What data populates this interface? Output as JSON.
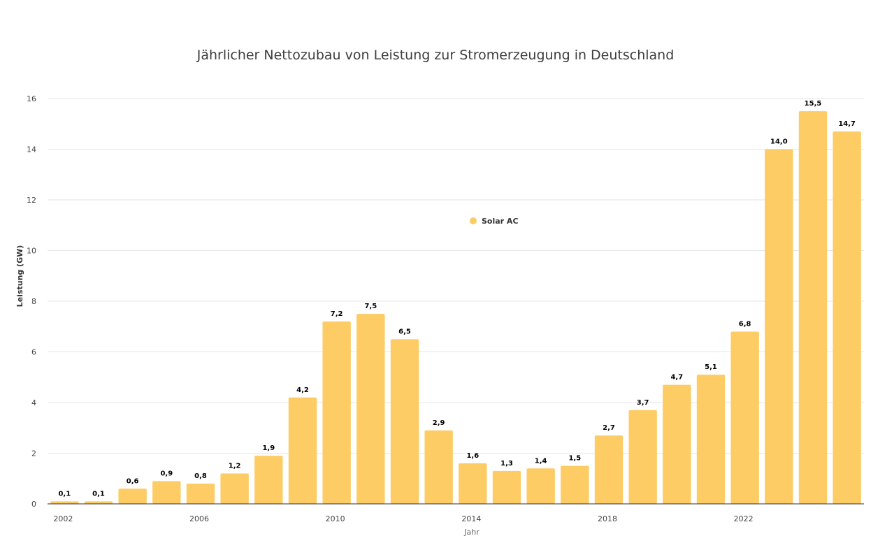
{
  "chart_data": {
    "type": "bar",
    "title": "Jährlicher Nettozubau von Leistung zur Stromerzeugung in Deutschland",
    "xlabel": "Jahr",
    "ylabel": "Leistung (GW)",
    "ylim": [
      0,
      16
    ],
    "yticks": [
      "0",
      "2",
      "4",
      "6",
      "8",
      "10",
      "12",
      "14",
      "16"
    ],
    "ytick_values": [
      0,
      2,
      4,
      6,
      8,
      10,
      12,
      14,
      16
    ],
    "categories": [
      2002,
      2003,
      2004,
      2005,
      2006,
      2007,
      2008,
      2009,
      2010,
      2011,
      2012,
      2013,
      2014,
      2015,
      2016,
      2017,
      2018,
      2019,
      2020,
      2021,
      2022,
      2023,
      2024,
      2025
    ],
    "xtick_labels": [
      "2002",
      "2006",
      "2010",
      "2014",
      "2018",
      "2022"
    ],
    "xtick_values": [
      2002,
      2006,
      2010,
      2014,
      2018,
      2022
    ],
    "series": [
      {
        "name": "Solar AC",
        "color": "#FDCC65",
        "values": [
          0.1,
          0.1,
          0.6,
          0.9,
          0.8,
          1.2,
          1.9,
          4.2,
          7.2,
          7.5,
          6.5,
          2.9,
          1.6,
          1.3,
          1.4,
          1.5,
          2.7,
          3.7,
          4.7,
          5.1,
          6.8,
          14.0,
          15.5,
          14.7
        ],
        "labels": [
          "0,1",
          "0,1",
          "0,6",
          "0,9",
          "0,8",
          "1,2",
          "1,9",
          "4,2",
          "7,2",
          "7,5",
          "6,5",
          "2,9",
          "1,6",
          "1,3",
          "1,4",
          "1,5",
          "2,7",
          "3,7",
          "4,7",
          "5,1",
          "6,8",
          "14,0",
          "15,5",
          "14,7"
        ]
      }
    ],
    "legend": {
      "label": "Solar AC",
      "position": "center"
    },
    "grid": true
  }
}
